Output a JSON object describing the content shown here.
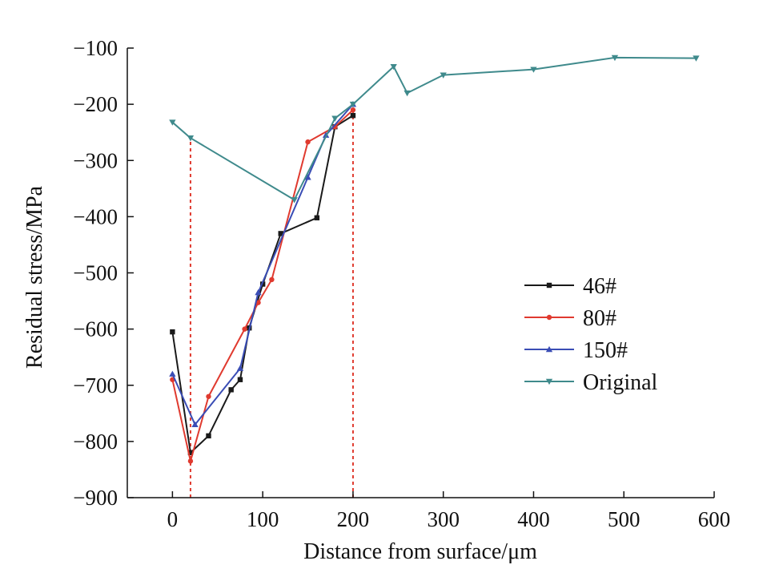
{
  "chart_data": {
    "type": "line",
    "xlabel": "Distance from surface/μm",
    "ylabel": "Residual stress/MPa",
    "xlim": [
      -50,
      600
    ],
    "ylim": [
      -900,
      -100
    ],
    "xticks": [
      0,
      100,
      200,
      300,
      400,
      500,
      600
    ],
    "yticks": [
      -100,
      -200,
      -300,
      -400,
      -500,
      -600,
      -700,
      -800,
      -900
    ],
    "xtick_labels": [
      "0",
      "100",
      "200",
      "300",
      "400",
      "500",
      "600"
    ],
    "ytick_labels": [
      "−100",
      "−200",
      "−300",
      "−400",
      "−500",
      "−600",
      "−700",
      "−800",
      "−900"
    ],
    "grid": false,
    "legend_position": "right-middle",
    "series": [
      {
        "name": "46#",
        "color": "#1a1a1a",
        "marker": "square",
        "x": [
          0,
          20,
          40,
          65,
          75,
          85,
          100,
          120,
          160,
          180,
          200
        ],
        "y": [
          -605,
          -820,
          -790,
          -708,
          -690,
          -598,
          -520,
          -430,
          -402,
          -240,
          -220
        ]
      },
      {
        "name": "80#",
        "color": "#e03a2f",
        "marker": "circle",
        "x": [
          0,
          20,
          40,
          80,
          95,
          110,
          150,
          180,
          200
        ],
        "y": [
          -690,
          -835,
          -720,
          -600,
          -553,
          -512,
          -267,
          -240,
          -210
        ]
      },
      {
        "name": "150#",
        "color": "#3a4db5",
        "marker": "triangle-up",
        "x": [
          0,
          25,
          75,
          95,
          150,
          170,
          200
        ],
        "y": [
          -680,
          -770,
          -670,
          -535,
          -330,
          -255,
          -200
        ]
      },
      {
        "name": "Original",
        "color": "#3f8a8c",
        "marker": "triangle-down",
        "x": [
          0,
          20,
          135,
          180,
          200,
          245,
          260,
          300,
          400,
          490,
          580
        ],
        "y": [
          -232,
          -260,
          -370,
          -225,
          -200,
          -133,
          -180,
          -148,
          -138,
          -117,
          -118
        ]
      }
    ],
    "reference_lines": [
      {
        "x": 20,
        "y_from": -900,
        "y_to": -260,
        "color": "#e03a2f",
        "style": "dashed"
      },
      {
        "x": 200,
        "y_from": -900,
        "y_to": -200,
        "color": "#e03a2f",
        "style": "dashed"
      }
    ]
  }
}
